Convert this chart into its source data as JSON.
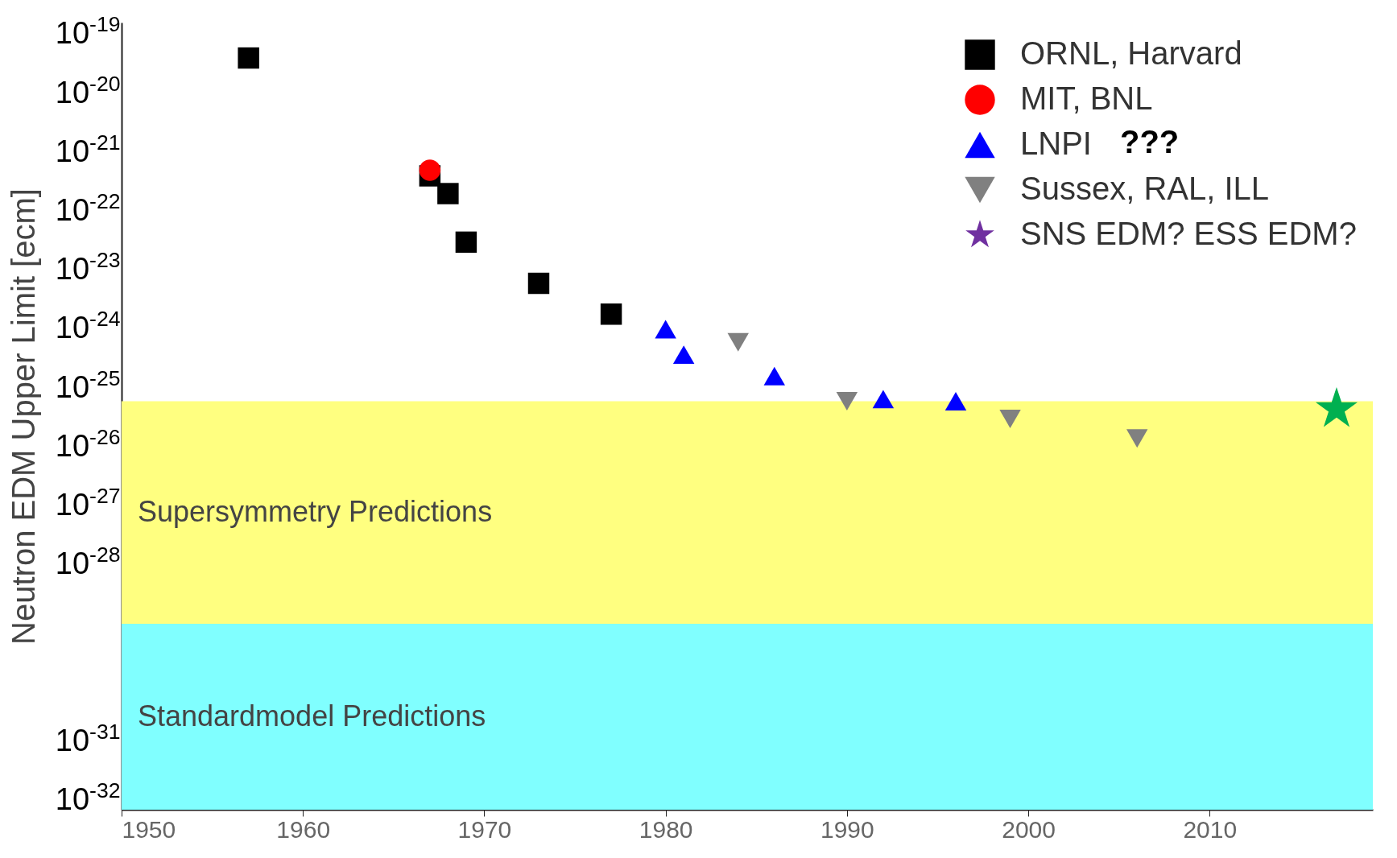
{
  "chart_data": {
    "type": "scatter",
    "ylabel": "Neutron EDM Upper Limit [ecm]",
    "log": "y",
    "grid": false,
    "legend": "top right",
    "xlim": [
      1950,
      2019
    ],
    "xticks": [
      1950,
      1960,
      1970,
      1980,
      1990,
      2000,
      2010
    ],
    "ylim": [
      7e-33,
      1.6e-19
    ],
    "yticks": [
      {
        "value": 1e-19,
        "label": "10$^{-19}$"
      },
      {
        "value": 1e-20,
        "label": "10$^{-20}$"
      },
      {
        "value": 1e-21,
        "label": "10$^{-21}$"
      },
      {
        "value": 1e-22,
        "label": "10$^{-22}$"
      },
      {
        "value": 1e-23,
        "label": "10$^{-23}$"
      },
      {
        "value": 1e-24,
        "label": "10$^{-24}$"
      },
      {
        "value": 1e-25,
        "label": "10$^{-25}$"
      },
      {
        "value": 1e-26,
        "label": "10$^{-26}$"
      },
      {
        "value": 1e-27,
        "label": "10$^{-27}$"
      },
      {
        "value": 1e-28,
        "label": "10$^{-28}$"
      },
      {
        "value": 1e-31,
        "label": "10$^{-31}$"
      },
      {
        "value": 1e-32,
        "label": "10$^{-32}$"
      }
    ],
    "series": [
      {
        "name": "ORNL, Harvard",
        "color": "#000000",
        "marker": "square",
        "x": [
          1957,
          1967,
          1968,
          1969,
          1973,
          1977
        ],
        "values": [
          4e-20,
          4e-22,
          2e-22,
          3e-23,
          6e-24,
          1.8e-24
        ]
      },
      {
        "name": "MIT, BNL",
        "color": "#ff0000",
        "marker": "circle",
        "x": [
          1967
        ],
        "values": [
          5e-22
        ]
      },
      {
        "name": "LNPI",
        "color": "#0000ff",
        "marker": "triangle",
        "x": [
          1980,
          1981,
          1986,
          1992,
          1996
        ],
        "values": [
          1e-24,
          3.7e-25,
          1.6e-25,
          6.5e-26,
          6e-26
        ]
      },
      {
        "name": "Sussex, RAL, ILL",
        "color": "#808080",
        "marker": "triangle-down",
        "x": [
          1984,
          1990,
          1999,
          2006
        ],
        "values": [
          6e-25,
          6e-26,
          3e-26,
          1.4e-26
        ]
      },
      {
        "name": "SNS EDM? ESS EDM?",
        "color": "#7030a0",
        "marker": "star"
      },
      {
        "color": "#00b050",
        "marker": "star",
        "x": [
          2017
        ],
        "values": [
          4.4e-26
        ]
      }
    ],
    "bands": [
      {
        "axis": "y",
        "from": 1e-29,
        "to": 6e-26,
        "label": "Supersymmetry Predictions",
        "color": "#ffff80"
      },
      {
        "axis": "y",
        "from": 7e-33,
        "to": 1e-29,
        "label": "Standardmodel Predictions",
        "color": "#80ffff"
      }
    ],
    "annotations": [
      "???"
    ]
  }
}
